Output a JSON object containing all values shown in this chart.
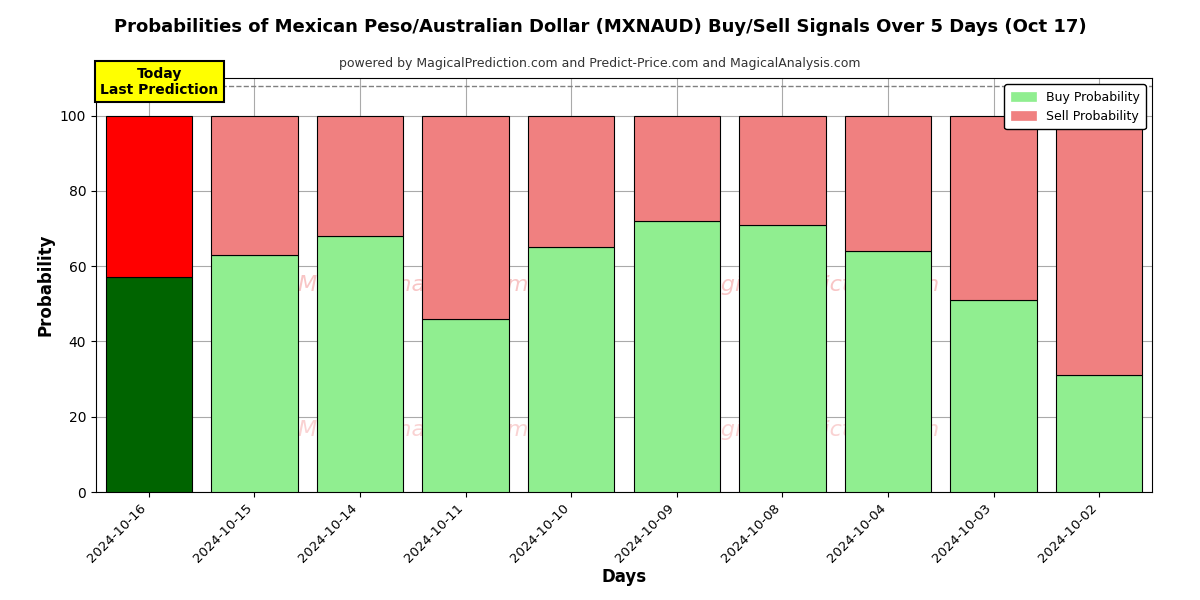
{
  "title": "Probabilities of Mexican Peso/Australian Dollar (MXNAUD) Buy/Sell Signals Over 5 Days (Oct 17)",
  "subtitle": "powered by MagicalPrediction.com and Predict-Price.com and MagicalAnalysis.com",
  "xlabel": "Days",
  "ylabel": "Probability",
  "days": [
    "2024-10-16",
    "2024-10-15",
    "2024-10-14",
    "2024-10-11",
    "2024-10-10",
    "2024-10-09",
    "2024-10-08",
    "2024-10-04",
    "2024-10-03",
    "2024-10-02"
  ],
  "buy_values": [
    57,
    63,
    68,
    46,
    65,
    72,
    71,
    64,
    51,
    31
  ],
  "sell_values": [
    43,
    37,
    32,
    54,
    35,
    28,
    29,
    36,
    49,
    69
  ],
  "today_bar_buy_color": "#006400",
  "today_bar_sell_color": "#FF0000",
  "regular_buy_color": "#90EE90",
  "regular_sell_color": "#F08080",
  "today_label_bg": "#FFFF00",
  "today_label_text": "Today\nLast Prediction",
  "ylim_min": 0,
  "ylim_max": 110,
  "yticks": [
    0,
    20,
    40,
    60,
    80,
    100
  ],
  "dashed_line_y": 108,
  "legend_buy_label": "Buy Probability",
  "legend_sell_label": "Sell Probability",
  "bg_color": "#FFFFFF",
  "grid_color": "#AAAAAA",
  "bar_width": 0.82
}
